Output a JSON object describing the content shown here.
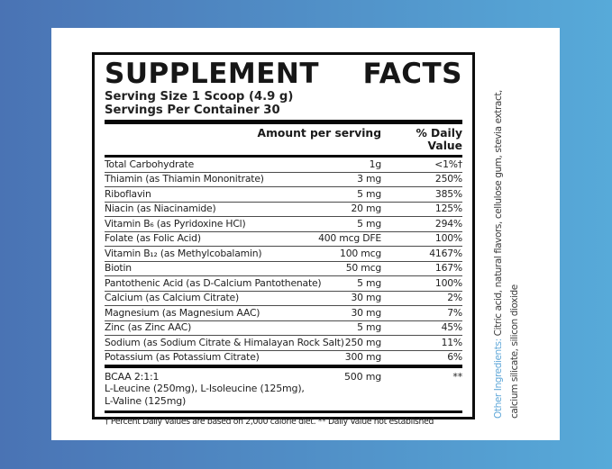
{
  "background": {
    "gradient_left": "#4a73b4",
    "gradient_right": "#57aad9"
  },
  "label": {
    "title_left": "SUPPLEMENT",
    "title_right": "FACTS",
    "serving_size": "Serving Size 1 Scoop (4.9 g)",
    "servings_per_container": "Servings Per Container 30",
    "columns": {
      "amount": "Amount per serving",
      "daily_value": "% Daily Value"
    },
    "rows": [
      {
        "name": "Total Carbohydrate",
        "amount": "1g",
        "dv": "<1%†"
      },
      {
        "name": "Thiamin (as Thiamin Mononitrate)",
        "amount": "3 mg",
        "dv": "250%"
      },
      {
        "name": "Riboflavin",
        "amount": "5 mg",
        "dv": "385%"
      },
      {
        "name": "Niacin (as Niacinamide)",
        "amount": "20 mg",
        "dv": "125%"
      },
      {
        "name": "Vitamin B₆ (as Pyridoxine HCl)",
        "amount": "5 mg",
        "dv": "294%"
      },
      {
        "name": "Folate (as Folic Acid)",
        "amount": "400 mcg DFE",
        "dv": "100%"
      },
      {
        "name": "Vitamin B₁₂ (as Methylcobalamin)",
        "amount": "100 mcg",
        "dv": "4167%"
      },
      {
        "name": "Biotin",
        "amount": "50 mcg",
        "dv": "167%"
      },
      {
        "name": "Pantothenic Acid (as D-Calcium Pantothenate)",
        "amount": "5 mg",
        "dv": "100%"
      },
      {
        "name": "Calcium (as Calcium Citrate)",
        "amount": "30 mg",
        "dv": "2%"
      },
      {
        "name": "Magnesium (as Magnesium AAC)",
        "amount": "30 mg",
        "dv": "7%"
      },
      {
        "name": "Zinc (as Zinc AAC)",
        "amount": "5 mg",
        "dv": "45%"
      },
      {
        "name": "Sodium (as Sodium Citrate & Himalayan Rock Salt)",
        "amount": "250 mg",
        "dv": "11%"
      },
      {
        "name": "Potassium (as Potassium Citrate)",
        "amount": "300 mg",
        "dv": "6%"
      }
    ],
    "bcaa": {
      "name": "BCAA 2:1:1",
      "amount": "500 mg",
      "dv": "**",
      "sub_line1": "L-Leucine (250mg), L-Isoleucine (125mg),",
      "sub_line2": "L-Valine (125mg)"
    },
    "footnote": "† Percent Daily Values are based on 2,000 calorie diet. ** Daily Value not established"
  },
  "other_ingredients": {
    "label": "Other Ingredients: ",
    "line1_rest": "Citric acid, natural flavors, cellulose gum, stevia extract,",
    "line2": "calcium silicate, silicon dioxide",
    "label_color": "#5fa7d8"
  }
}
